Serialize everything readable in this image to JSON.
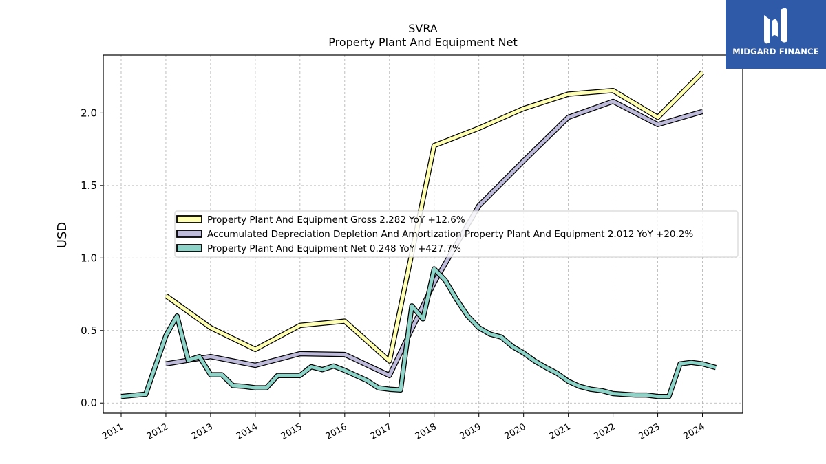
{
  "chart_data": {
    "type": "line",
    "title": "SVRA",
    "subtitle": "Property Plant And Equipment Net",
    "ylabel": "USD",
    "xlabel": "",
    "xlim": [
      2010.6,
      2024.9
    ],
    "ylim": [
      -0.07,
      2.4
    ],
    "yticks": [
      0.0,
      0.5,
      1.0,
      1.5,
      2.0
    ],
    "ytick_labels": [
      "0.0",
      "0.5",
      "1.0",
      "1.5",
      "2.0"
    ],
    "xticks": [
      2011,
      2012,
      2013,
      2014,
      2015,
      2016,
      2017,
      2018,
      2019,
      2020,
      2021,
      2022,
      2023,
      2024
    ],
    "xtick_labels": [
      "2011",
      "2012",
      "2013",
      "2014",
      "2015",
      "2016",
      "2017",
      "2018",
      "2019",
      "2020",
      "2021",
      "2022",
      "2023",
      "2024"
    ],
    "grid": true,
    "legend_position": "center-left",
    "series": [
      {
        "name": "Property Plant And Equipment Gross  2.282 YoY +12.6%",
        "color": "#ffffb3",
        "points": [
          [
            2012.0,
            0.74
          ],
          [
            2013.0,
            0.52
          ],
          [
            2014.0,
            0.37
          ],
          [
            2015.0,
            0.535
          ],
          [
            2016.0,
            0.565
          ],
          [
            2017.0,
            0.29
          ],
          [
            2018.0,
            1.775
          ],
          [
            2019.0,
            1.895
          ],
          [
            2020.0,
            2.03
          ],
          [
            2021.0,
            2.13
          ],
          [
            2022.0,
            2.155
          ],
          [
            2023.0,
            1.97
          ],
          [
            2024.0,
            2.28
          ]
        ]
      },
      {
        "name": "Accumulated Depreciation Depletion And Amortization Property Plant And Equipment  2.012 YoY +20.2%",
        "color": "#bebada",
        "points": [
          [
            2012.0,
            0.27
          ],
          [
            2013.0,
            0.32
          ],
          [
            2014.0,
            0.26
          ],
          [
            2015.0,
            0.34
          ],
          [
            2016.0,
            0.335
          ],
          [
            2017.0,
            0.19
          ],
          [
            2018.0,
            0.83
          ],
          [
            2019.0,
            1.36
          ],
          [
            2020.0,
            1.67
          ],
          [
            2021.0,
            1.97
          ],
          [
            2022.0,
            2.08
          ],
          [
            2023.0,
            1.92
          ],
          [
            2024.0,
            2.01
          ]
        ]
      },
      {
        "name": "Property Plant And Equipment Net  0.248 YoY +427.7%",
        "color": "#8dd3c7",
        "points": [
          [
            2011.0,
            0.045
          ],
          [
            2011.5,
            0.06
          ],
          [
            2011.55,
            0.06
          ],
          [
            2011.75,
            0.24
          ],
          [
            2012.0,
            0.465
          ],
          [
            2012.25,
            0.6
          ],
          [
            2012.5,
            0.295
          ],
          [
            2012.75,
            0.32
          ],
          [
            2013.0,
            0.195
          ],
          [
            2013.25,
            0.195
          ],
          [
            2013.5,
            0.12
          ],
          [
            2013.75,
            0.115
          ],
          [
            2014.0,
            0.105
          ],
          [
            2014.25,
            0.105
          ],
          [
            2014.5,
            0.19
          ],
          [
            2014.75,
            0.19
          ],
          [
            2015.0,
            0.19
          ],
          [
            2015.25,
            0.25
          ],
          [
            2015.5,
            0.23
          ],
          [
            2015.75,
            0.255
          ],
          [
            2016.0,
            0.225
          ],
          [
            2016.25,
            0.19
          ],
          [
            2016.5,
            0.155
          ],
          [
            2016.75,
            0.105
          ],
          [
            2017.0,
            0.095
          ],
          [
            2017.25,
            0.09
          ],
          [
            2017.5,
            0.67
          ],
          [
            2017.75,
            0.58
          ],
          [
            2018.0,
            0.925
          ],
          [
            2018.25,
            0.845
          ],
          [
            2018.5,
            0.715
          ],
          [
            2018.75,
            0.6
          ],
          [
            2019.0,
            0.52
          ],
          [
            2019.25,
            0.475
          ],
          [
            2019.5,
            0.455
          ],
          [
            2019.75,
            0.39
          ],
          [
            2020.0,
            0.345
          ],
          [
            2020.25,
            0.29
          ],
          [
            2020.5,
            0.245
          ],
          [
            2020.75,
            0.205
          ],
          [
            2021.0,
            0.15
          ],
          [
            2021.25,
            0.115
          ],
          [
            2021.5,
            0.095
          ],
          [
            2021.75,
            0.085
          ],
          [
            2022.0,
            0.065
          ],
          [
            2022.25,
            0.06
          ],
          [
            2022.5,
            0.055
          ],
          [
            2022.75,
            0.055
          ],
          [
            2023.0,
            0.045
          ],
          [
            2023.25,
            0.045
          ],
          [
            2023.5,
            0.27
          ],
          [
            2023.75,
            0.28
          ],
          [
            2024.0,
            0.27
          ],
          [
            2024.3,
            0.245
          ]
        ]
      }
    ]
  },
  "logo": {
    "text": "MIDGARD FINANCE",
    "background": "#2e5aa8"
  }
}
